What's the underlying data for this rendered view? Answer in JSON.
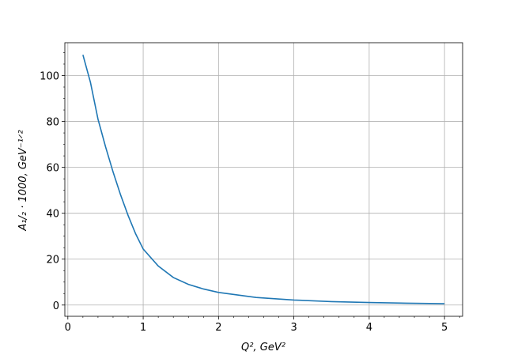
{
  "chart_data": {
    "type": "line",
    "xlabel": "Q², GeV²",
    "ylabel": "A₁/₂ · 1000, GeV⁻¹ᐟ²",
    "x": [
      0.2,
      0.3,
      0.4,
      0.5,
      0.6,
      0.7,
      0.8,
      0.9,
      1.0,
      1.2,
      1.4,
      1.6,
      1.8,
      2.0,
      2.5,
      3.0,
      3.5,
      4.0,
      4.5,
      5.0
    ],
    "series": [
      {
        "color": "#1f77b4",
        "values": [
          109,
          97,
          81,
          69,
          58,
          48,
          39,
          31,
          24.4,
          17,
          12,
          9,
          7,
          5.5,
          3.3,
          2.2,
          1.5,
          1.1,
          0.8,
          0.6
        ]
      }
    ],
    "xlim": [
      -0.04,
      5.24
    ],
    "ylim": [
      -4.9,
      114.3
    ],
    "xticks": [
      0,
      1,
      2,
      3,
      4,
      5
    ],
    "yticks": [
      0,
      20,
      40,
      60,
      80,
      100
    ],
    "minor_xticks": [
      0.2,
      0.4,
      0.6,
      0.8,
      1.2,
      1.4,
      1.6,
      1.8,
      2.2,
      2.4,
      2.6,
      2.8,
      3.2,
      3.4,
      3.6,
      3.8,
      4.2,
      4.4,
      4.6,
      4.8,
      5.2
    ],
    "minor_yticks": [
      5,
      10,
      15,
      25,
      30,
      35,
      45,
      50,
      55,
      65,
      70,
      75,
      85,
      90,
      95,
      105,
      110
    ],
    "grid": true
  }
}
